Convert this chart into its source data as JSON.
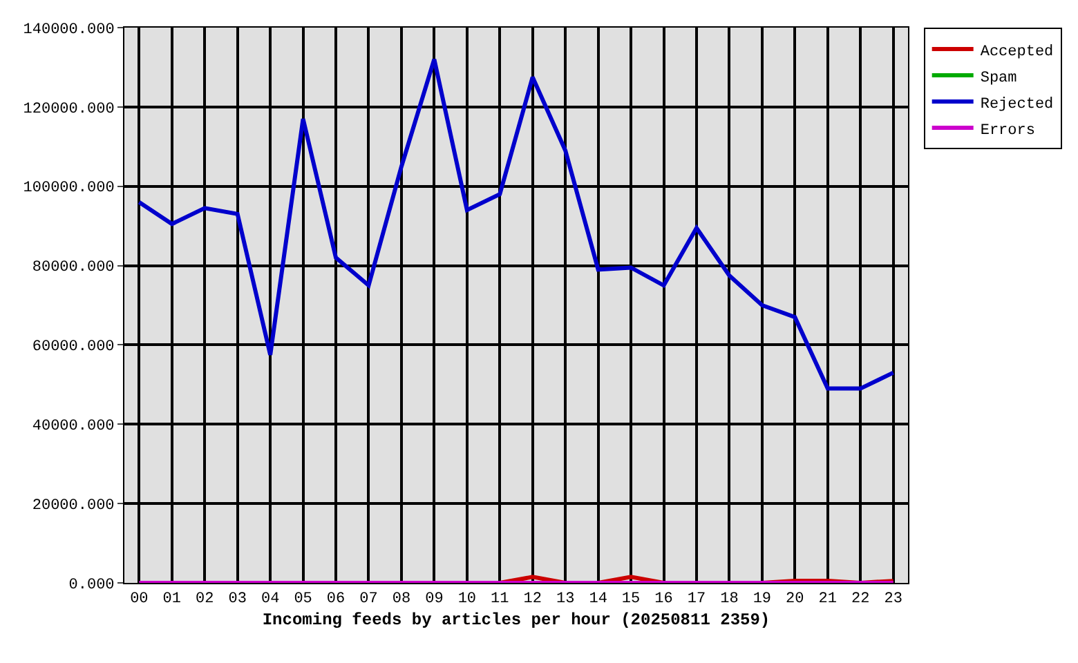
{
  "chart_data": {
    "type": "line",
    "xlabel": "Incoming feeds by articles per hour (20250811 2359)",
    "categories": [
      "00",
      "01",
      "02",
      "03",
      "04",
      "05",
      "06",
      "07",
      "08",
      "09",
      "10",
      "11",
      "12",
      "13",
      "14",
      "15",
      "16",
      "17",
      "18",
      "19",
      "20",
      "21",
      "22",
      "23"
    ],
    "series": [
      {
        "name": "Accepted",
        "color": "#cc0000",
        "values": [
          null,
          null,
          null,
          null,
          null,
          null,
          null,
          null,
          null,
          null,
          null,
          0,
          1500,
          0,
          0,
          1500,
          0,
          null,
          null,
          0,
          500,
          500,
          0,
          500
        ]
      },
      {
        "name": "Spam",
        "color": "#00aa00",
        "values": [
          null,
          null,
          null,
          null,
          null,
          null,
          null,
          null,
          null,
          null,
          null,
          null,
          null,
          null,
          null,
          null,
          null,
          null,
          null,
          null,
          null,
          null,
          null,
          null
        ]
      },
      {
        "name": "Rejected",
        "color": "#0000cc",
        "values": [
          96000,
          90500,
          94500,
          93000,
          57500,
          117000,
          82000,
          75000,
          105000,
          132000,
          94000,
          98000,
          127500,
          109000,
          79000,
          79500,
          75000,
          89500,
          77500,
          70000,
          67000,
          49000,
          49000,
          53000
        ]
      },
      {
        "name": "Errors",
        "color": "#cc00cc",
        "values": [
          0,
          0,
          0,
          0,
          0,
          0,
          0,
          0,
          0,
          0,
          0,
          0,
          0,
          0,
          0,
          0,
          0,
          0,
          0,
          0,
          0,
          0,
          0,
          0
        ]
      }
    ],
    "ylim": [
      0,
      140000
    ],
    "yticks": [
      {
        "value": 0,
        "label": "0.000"
      },
      {
        "value": 20000,
        "label": "20000.000"
      },
      {
        "value": 40000,
        "label": "40000.000"
      },
      {
        "value": 60000,
        "label": "60000.000"
      },
      {
        "value": 80000,
        "label": "80000.000"
      },
      {
        "value": 100000,
        "label": "100000.000"
      },
      {
        "value": 120000,
        "label": "120000.000"
      },
      {
        "value": 140000,
        "label": "140000.000"
      }
    ],
    "grid": true,
    "legend": "top right",
    "marker": "none",
    "line_style": "solid"
  }
}
